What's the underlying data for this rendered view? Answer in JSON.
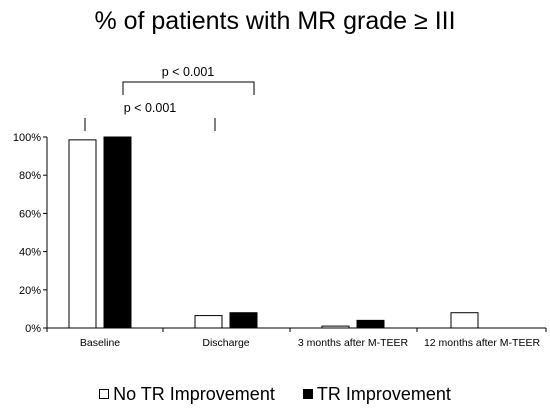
{
  "chart_data": {
    "type": "bar",
    "title": "% of patients with MR grade ≥ III",
    "categories": [
      "Baseline",
      "Discharge",
      "3 months after M-TEER",
      "12 months after M-TEER"
    ],
    "series": [
      {
        "name": "No TR Improvement",
        "values": [
          98.5,
          6.5,
          1.0,
          8.0
        ],
        "color": "#ffffff"
      },
      {
        "name": "TR Improvement",
        "values": [
          100,
          8.0,
          4.0,
          0
        ],
        "color": "#000000"
      }
    ],
    "yticks": [
      "0%",
      "20%",
      "40%",
      "60%",
      "80%",
      "100%"
    ],
    "ylim": [
      0,
      100
    ],
    "grid": false,
    "legend_position": "bottom",
    "annotations": [
      {
        "text": "p < 0.001",
        "bracket": "Baseline vs 3 months after M-TEER"
      },
      {
        "text": "p < 0.001",
        "bracket": "Baseline vs Discharge"
      }
    ]
  }
}
